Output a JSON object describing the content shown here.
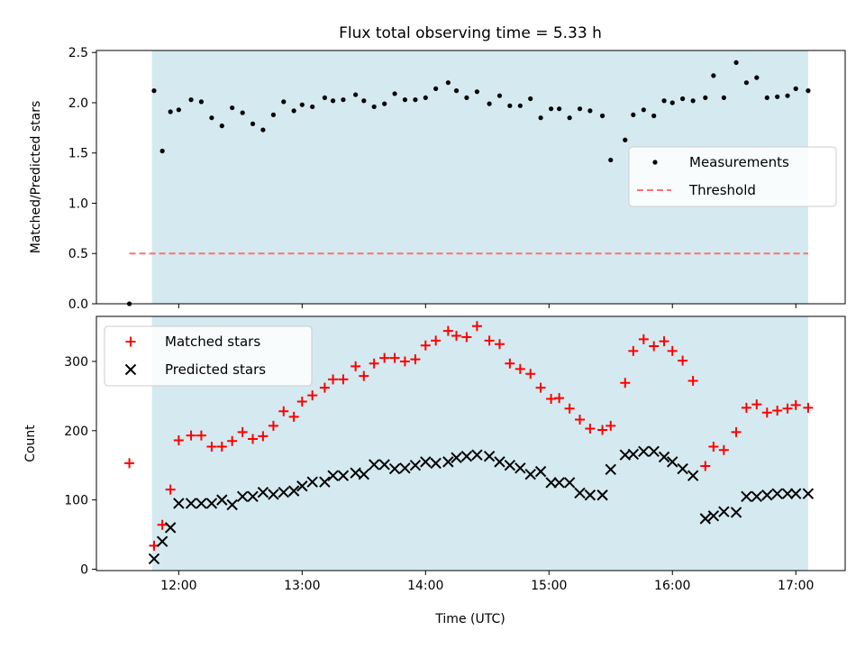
{
  "chart_data": {
    "type": "scatter",
    "title": "Flux total observing time = 5.33 h",
    "xlabel": "Time (UTC)",
    "xlim": [
      11.333,
      17.4
    ],
    "xticks": [
      {
        "value": 12,
        "label": "12:00"
      },
      {
        "value": 13,
        "label": "13:00"
      },
      {
        "value": 14,
        "label": "14:00"
      },
      {
        "value": 15,
        "label": "15:00"
      },
      {
        "value": 16,
        "label": "16:00"
      },
      {
        "value": 17,
        "label": "17:00"
      }
    ],
    "shaded_interval": {
      "x": [
        11.783,
        17.1
      ],
      "color": "#d4eaf0"
    },
    "panels": [
      {
        "name": "ratio",
        "ylabel": "Matched/Predicted stars",
        "ylim": [
          0,
          2.52
        ],
        "yticks": [
          {
            "value": 0,
            "label": "0.0"
          },
          {
            "value": 0.5,
            "label": "0.5"
          },
          {
            "value": 1.0,
            "label": "1.0"
          },
          {
            "value": 1.5,
            "label": "1.5"
          },
          {
            "value": 2.0,
            "label": "2.0"
          },
          {
            "value": 2.5,
            "label": "2.5"
          }
        ],
        "legend": {
          "position": "right",
          "entries": [
            "Measurements",
            "Threshold"
          ]
        },
        "series": [
          {
            "name": "Measurements",
            "marker": "dot",
            "color": "#000000",
            "x": [
              11.6,
              11.8,
              11.867,
              11.933,
              12.0,
              12.1,
              12.183,
              12.267,
              12.35,
              12.433,
              12.517,
              12.6,
              12.683,
              12.767,
              12.85,
              12.933,
              13.0,
              13.083,
              13.183,
              13.25,
              13.333,
              13.433,
              13.5,
              13.583,
              13.667,
              13.75,
              13.833,
              13.917,
              14.0,
              14.083,
              14.183,
              14.25,
              14.333,
              14.417,
              14.517,
              14.6,
              14.683,
              14.767,
              14.85,
              14.933,
              15.017,
              15.083,
              15.167,
              15.25,
              15.333,
              15.433,
              15.5,
              15.617,
              15.683,
              15.767,
              15.85,
              15.933,
              16.0,
              16.083,
              16.167,
              16.267,
              16.333,
              16.417,
              16.517,
              16.6,
              16.683,
              16.767,
              16.85,
              16.933,
              17.0,
              17.1
            ],
            "y": [
              0.0,
              2.12,
              1.52,
              1.91,
              1.93,
              2.03,
              2.01,
              1.85,
              1.77,
              1.95,
              1.9,
              1.79,
              1.73,
              1.88,
              2.01,
              1.92,
              1.98,
              1.96,
              2.05,
              2.02,
              2.03,
              2.08,
              2.02,
              1.96,
              1.99,
              2.09,
              2.03,
              2.03,
              2.05,
              2.14,
              2.2,
              2.12,
              2.05,
              2.11,
              1.99,
              2.07,
              1.97,
              1.97,
              2.04,
              1.85,
              1.94,
              1.94,
              1.85,
              1.94,
              1.92,
              1.87,
              1.43,
              1.63,
              1.88,
              1.93,
              1.87,
              2.02,
              2.0,
              2.04,
              2.02,
              2.05,
              2.27,
              2.05,
              2.4,
              2.2,
              2.25,
              2.05,
              2.06,
              2.07,
              2.14,
              2.12
            ]
          },
          {
            "name": "Threshold",
            "marker": "dashed-line",
            "color": "#ff7070",
            "x": [
              11.6,
              17.1
            ],
            "y": [
              0.5,
              0.5
            ]
          }
        ]
      },
      {
        "name": "counts",
        "ylabel": "Count",
        "ylim": [
          -2,
          365
        ],
        "yticks": [
          {
            "value": 0,
            "label": "0"
          },
          {
            "value": 100,
            "label": "100"
          },
          {
            "value": 200,
            "label": "200"
          },
          {
            "value": 300,
            "label": "300"
          }
        ],
        "legend": {
          "position": "upper-left",
          "entries": [
            "Matched stars",
            "Predicted stars"
          ]
        },
        "series": [
          {
            "name": "Matched stars",
            "marker": "plus",
            "color": "#ff0000",
            "x": [
              11.6,
              11.8,
              11.867,
              11.933,
              12.0,
              12.1,
              12.183,
              12.267,
              12.35,
              12.433,
              12.517,
              12.6,
              12.683,
              12.767,
              12.85,
              12.933,
              13.0,
              13.083,
              13.183,
              13.25,
              13.333,
              13.433,
              13.5,
              13.583,
              13.667,
              13.75,
              13.833,
              13.917,
              14.0,
              14.083,
              14.183,
              14.25,
              14.333,
              14.417,
              14.517,
              14.6,
              14.683,
              14.767,
              14.85,
              14.933,
              15.017,
              15.083,
              15.167,
              15.25,
              15.333,
              15.433,
              15.5,
              15.617,
              15.683,
              15.767,
              15.85,
              15.933,
              16.0,
              16.083,
              16.167,
              16.267,
              16.333,
              16.417,
              16.517,
              16.6,
              16.683,
              16.767,
              16.85,
              16.933,
              17.0,
              17.1
            ],
            "y": [
              153,
              34,
              64,
              115,
              186,
              193,
              193,
              177,
              177,
              185,
              198,
              188,
              192,
              207,
              228,
              220,
              242,
              251,
              262,
              274,
              274,
              293,
              279,
              297,
              305,
              305,
              300,
              303,
              323,
              330,
              344,
              337,
              335,
              351,
              330,
              325,
              297,
              289,
              282,
              262,
              246,
              247,
              232,
              216,
              203,
              201,
              207,
              269,
              315,
              332,
              322,
              329,
              315,
              301,
              272,
              149,
              177,
              172,
              198,
              233,
              238,
              226,
              229,
              232,
              237,
              233
            ]
          },
          {
            "name": "Predicted stars",
            "marker": "x",
            "color": "#000000",
            "x": [
              11.8,
              11.867,
              11.933,
              12.0,
              12.1,
              12.183,
              12.267,
              12.35,
              12.433,
              12.517,
              12.6,
              12.683,
              12.767,
              12.85,
              12.933,
              13.0,
              13.083,
              13.183,
              13.25,
              13.333,
              13.433,
              13.5,
              13.583,
              13.667,
              13.75,
              13.833,
              13.917,
              14.0,
              14.083,
              14.183,
              14.25,
              14.333,
              14.417,
              14.517,
              14.6,
              14.683,
              14.767,
              14.85,
              14.933,
              15.017,
              15.083,
              15.167,
              15.25,
              15.333,
              15.433,
              15.5,
              15.617,
              15.683,
              15.767,
              15.85,
              15.933,
              16.0,
              16.083,
              16.167,
              16.267,
              16.333,
              16.417,
              16.517,
              16.6,
              16.683,
              16.767,
              16.85,
              16.933,
              17.0,
              17.1
            ],
            "y": [
              15,
              40,
              60,
              95,
              95,
              95,
              95,
              100,
              93,
              105,
              105,
              111,
              108,
              111,
              113,
              120,
              126,
              126,
              135,
              135,
              139,
              137,
              151,
              151,
              145,
              146,
              150,
              155,
              153,
              155,
              161,
              163,
              165,
              163,
              155,
              150,
              146,
              137,
              141,
              125,
              125,
              125,
              110,
              107,
              107,
              144,
              165,
              166,
              170,
              170,
              162,
              155,
              145,
              135,
              73,
              77,
              83,
              82,
              105,
              105,
              107,
              109,
              109,
              109,
              109
            ]
          }
        ]
      }
    ]
  }
}
